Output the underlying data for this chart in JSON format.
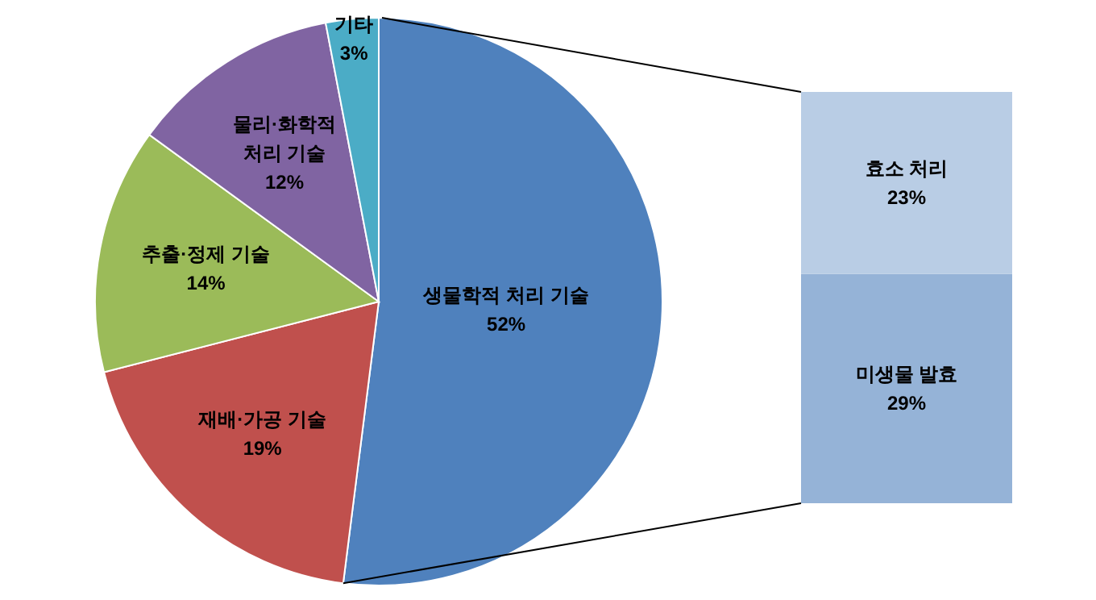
{
  "chart_data": [
    {
      "type": "pie",
      "categories": [
        "생물학적 처리 기술",
        "재배·가공 기술",
        "추출·정제 기술",
        "물리·화학적 처리 기술",
        "기타"
      ],
      "values": [
        52,
        19,
        14,
        12,
        3
      ],
      "colors": [
        "#4f81bd",
        "#c0504d",
        "#9bbb59",
        "#8064a2",
        "#4bacc6"
      ],
      "value_labels": [
        "52%",
        "19%",
        "14%",
        "12%",
        "3%"
      ]
    },
    {
      "type": "bar",
      "categories": [
        null
      ],
      "stacked": true,
      "series": [
        {
          "name": "미생물 발효",
          "color": "#95b3d7",
          "values": [
            29
          ],
          "value_labels": [
            "29%"
          ]
        },
        {
          "name": "효소 처리",
          "color": "#b9cde5",
          "values": [
            23
          ],
          "value_labels": [
            "23%"
          ]
        }
      ]
    }
  ]
}
